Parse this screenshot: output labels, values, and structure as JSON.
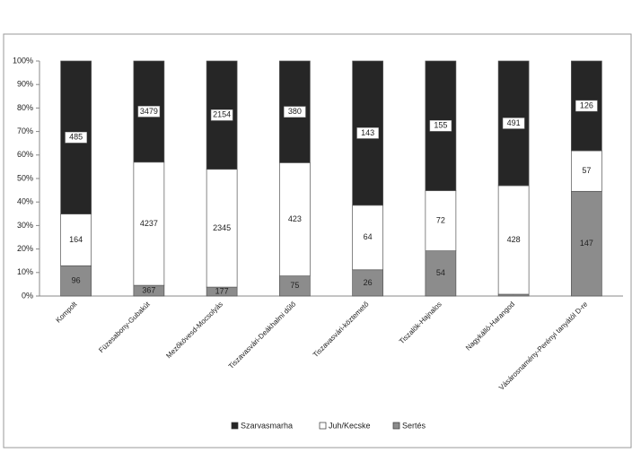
{
  "chart_data": {
    "type": "bar",
    "stacking": "percent",
    "categories": [
      "Kompolt",
      "Füzesabony-Gubakút",
      "Mezőkövesd-Mocsolyás",
      "Tiszavasvári-Deákhalmi dűlő",
      "Tiszavasvári-köztemető",
      "Tiszalök-Hajnalos",
      "Nagykálló-Harangod",
      "Vásárosnamény-Perényi tanyától D-re"
    ],
    "series": [
      {
        "name": "Sertés",
        "color": "#8c8c8c",
        "values": [
          96,
          367,
          177,
          75,
          26,
          54,
          7,
          147
        ]
      },
      {
        "name": "Juh/Kecske",
        "color": "#ffffff",
        "values": [
          164,
          4237,
          2345,
          423,
          64,
          72,
          428,
          57
        ]
      },
      {
        "name": "Szarvasmarha",
        "color": "#262626",
        "values": [
          485,
          3479,
          2154,
          380,
          143,
          155,
          491,
          126
        ]
      }
    ],
    "ylim": [
      0,
      100
    ],
    "yticks": [
      {
        "value": 0,
        "label": "0%"
      },
      {
        "value": 10,
        "label": "10%"
      },
      {
        "value": 20,
        "label": "20%"
      },
      {
        "value": 30,
        "label": "30%"
      },
      {
        "value": 40,
        "label": "40%"
      },
      {
        "value": 50,
        "label": "50%"
      },
      {
        "value": 60,
        "label": "60%"
      },
      {
        "value": 70,
        "label": "70%"
      },
      {
        "value": 80,
        "label": "80%"
      },
      {
        "value": 90,
        "label": "90%"
      },
      {
        "value": 100,
        "label": "100%"
      }
    ],
    "legend": "bottom"
  }
}
